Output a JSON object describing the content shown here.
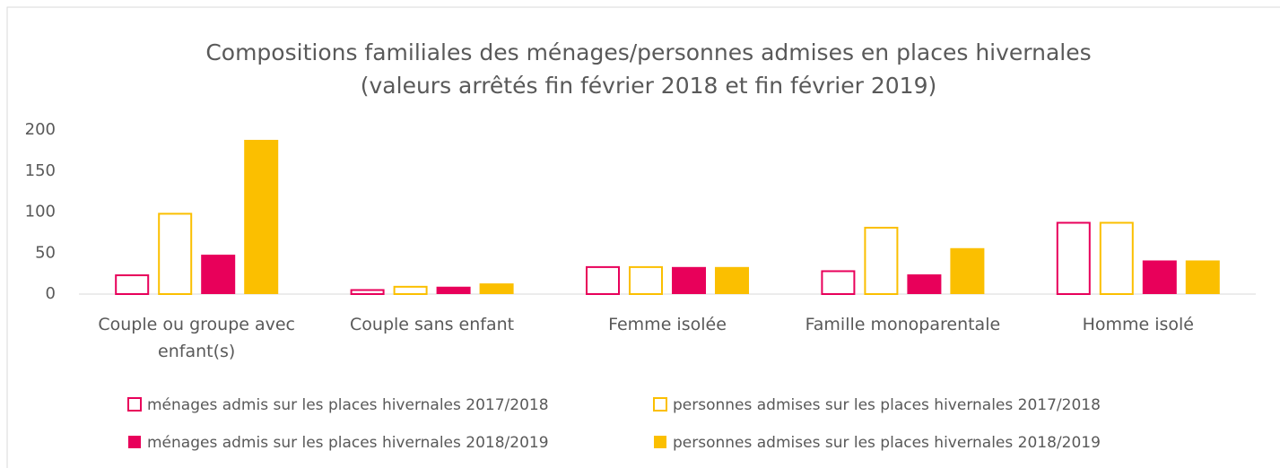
{
  "chart_data": {
    "type": "bar",
    "title": "Compositions familiales des ménages/personnes admises en places hivernales",
    "subtitle": "(valeurs arrêtés fin février 2018 et fin février 2019)",
    "categories": [
      "Couple ou groupe avec enfant(s)",
      "Couple sans enfant",
      "Femme isolée",
      "Famille monoparentale",
      "Homme isolé"
    ],
    "series": [
      {
        "name": "ménages admis sur les places hivernales 2017/2018",
        "color": "#e8005a",
        "filled": false,
        "values": [
          24,
          6,
          34,
          29,
          88
        ]
      },
      {
        "name": "personnes admises sur les places hivernales 2017/2018",
        "color": "#fbbf00",
        "filled": false,
        "values": [
          99,
          10,
          34,
          82,
          88
        ]
      },
      {
        "name": "ménages admis sur les places hivernales 2018/2019",
        "color": "#e8005a",
        "filled": true,
        "values": [
          48,
          9,
          33,
          24,
          41
        ]
      },
      {
        "name": "personnes admises sur les places hivernales 2018/2019",
        "color": "#fbbf00",
        "filled": true,
        "values": [
          188,
          13,
          33,
          56,
          41
        ]
      }
    ],
    "ylim": [
      0,
      200
    ],
    "yticks": [
      0,
      50,
      100,
      150,
      200
    ],
    "grid": false
  }
}
